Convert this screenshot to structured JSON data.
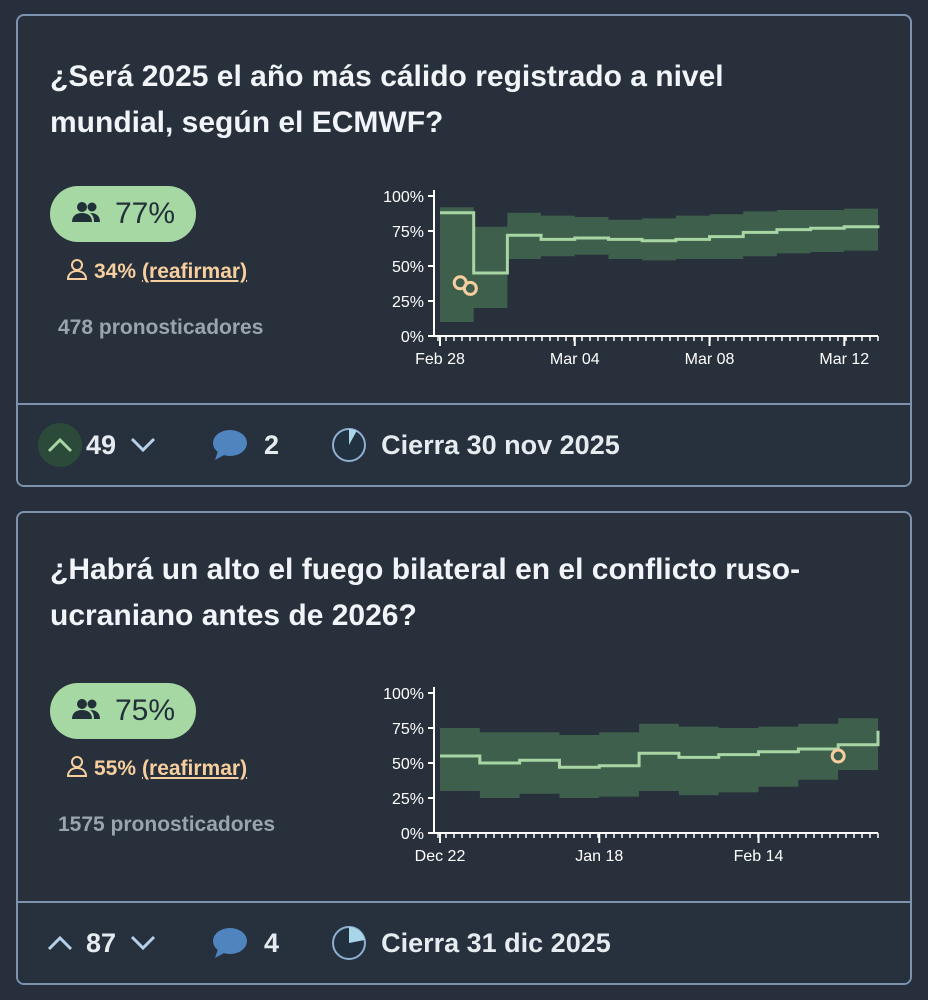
{
  "questions": [
    {
      "title": "¿Será 2025 el año más cálido registrado a nivel mundial, según el ECMWF?",
      "community_prediction": "77%",
      "my_prediction": "34%",
      "reaffirm_label": "(reafirmar)",
      "forecasters": "478 pronosticadores",
      "votes": "49",
      "upvoted": true,
      "comments": "2",
      "closes": "Cierra 30 nov 2025",
      "close_progress": 0.08,
      "chart_data": {
        "type": "area",
        "x": [
          "Feb 28",
          "Mar 01",
          "Mar 02",
          "Mar 03",
          "Mar 04",
          "Mar 05",
          "Mar 06",
          "Mar 07",
          "Mar 08",
          "Mar 09",
          "Mar 10",
          "Mar 11",
          "Mar 12",
          "Mar 12.3"
        ],
        "x_ticks": [
          "Feb 28",
          "Mar 04",
          "Mar 08",
          "Mar 12"
        ],
        "y_ticks": [
          "0%",
          "25%",
          "50%",
          "75%",
          "100%"
        ],
        "ylim": [
          0,
          100
        ],
        "series": [
          {
            "median": [
              88,
              45,
              72,
              69,
              70,
              69,
              68,
              69,
              71,
              74,
              76,
              77,
              78,
              77
            ],
            "lower": [
              10,
              20,
              55,
              57,
              58,
              55,
              54,
              55,
              55,
              57,
              59,
              60,
              61,
              60
            ],
            "upper": [
              92,
              78,
              88,
              86,
              85,
              83,
              84,
              86,
              87,
              89,
              90,
              90,
              91,
              91
            ]
          }
        ],
        "my_points": [
          {
            "x": "Feb 28.6",
            "y": 38
          },
          {
            "x": "Feb 28.9",
            "y": 34
          }
        ]
      }
    },
    {
      "title": "¿Habrá un alto el fuego bilateral en el conflicto ruso-ucraniano antes de 2026?",
      "community_prediction": "75%",
      "my_prediction": "55%",
      "reaffirm_label": "(reafirmar)",
      "forecasters": "1575 pronosticadores",
      "votes": "87",
      "upvoted": false,
      "comments": "4",
      "closes": "Cierra 31 dic 2025",
      "close_progress": 0.22,
      "chart_data": {
        "type": "area",
        "x": [
          "Dec 22",
          "Dec 29",
          "Jan 05",
          "Jan 12",
          "Jan 18",
          "Jan 25",
          "Feb 01",
          "Feb 08",
          "Feb 14",
          "Feb 21",
          "Feb 28",
          "Mar 05"
        ],
        "x_ticks": [
          "Dec 22",
          "Jan 18",
          "Feb 14"
        ],
        "y_ticks": [
          "0%",
          "25%",
          "50%",
          "75%",
          "100%"
        ],
        "ylim": [
          0,
          100
        ],
        "series": [
          {
            "median": [
              55,
              50,
              52,
              47,
              48,
              57,
              54,
              56,
              58,
              60,
              63,
              73
            ],
            "lower": [
              30,
              25,
              28,
              25,
              26,
              30,
              27,
              29,
              33,
              38,
              45,
              55
            ],
            "upper": [
              75,
              72,
              72,
              70,
              72,
              78,
              76,
              75,
              76,
              78,
              82,
              82
            ]
          }
        ],
        "my_points": [
          {
            "x": "Feb 28",
            "y": 55
          }
        ]
      }
    }
  ],
  "colors": {
    "line": "#a8d5a4",
    "band": "#3e5f4b",
    "band_dark": "#2e4a3a",
    "my_point": "#f7cf9f",
    "axis": "#ffffff",
    "border": "#7d93ad"
  }
}
